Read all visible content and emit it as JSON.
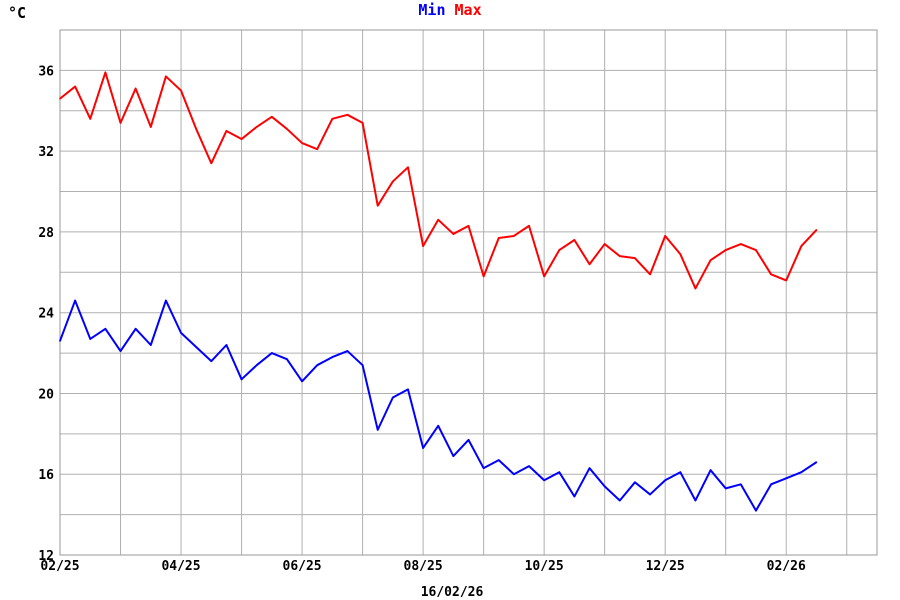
{
  "chart_data": {
    "type": "line",
    "title": "",
    "ylabel": "°C",
    "xlabel": "16/02/26",
    "ylim": [
      12,
      38
    ],
    "yticks": [
      12,
      16,
      20,
      24,
      28,
      32,
      36
    ],
    "xticks": [
      "02/25",
      "04/25",
      "06/25",
      "08/25",
      "10/25",
      "12/25",
      "02/26"
    ],
    "grid": true,
    "legend_position": "top-center",
    "x_unit": "month (MM/YY)",
    "x": [
      0,
      0.25,
      0.5,
      0.75,
      1,
      1.25,
      1.5,
      1.75,
      2,
      2.25,
      2.5,
      2.75,
      3,
      3.25,
      3.5,
      3.75,
      4,
      4.25,
      4.5,
      4.75,
      5,
      5.25,
      5.5,
      5.75,
      6,
      6.25,
      6.5,
      6.75,
      7,
      7.25,
      7.5,
      7.75,
      8,
      8.25,
      8.5,
      8.75,
      9,
      9.25,
      9.5,
      9.75,
      10,
      10.25,
      10.5,
      10.75,
      11,
      11.25,
      11.5,
      11.75,
      12,
      12.25,
      12.5
    ],
    "series": [
      {
        "name": "Min",
        "color": "#0000ff",
        "values": [
          22.6,
          24.6,
          22.7,
          23.2,
          22.1,
          23.2,
          22.4,
          24.6,
          23.0,
          22.3,
          21.6,
          22.4,
          20.7,
          21.4,
          22.0,
          21.7,
          20.6,
          21.4,
          21.8,
          22.1,
          21.4,
          18.2,
          19.8,
          20.2,
          17.3,
          18.4,
          16.9,
          17.7,
          16.3,
          16.7,
          16.0,
          16.4,
          15.7,
          16.1,
          14.9,
          16.3,
          15.4,
          14.7,
          15.6,
          15.0,
          15.7,
          16.1,
          14.7,
          16.2,
          15.3,
          15.5,
          14.2,
          15.5,
          15.8,
          16.1,
          16.6
        ]
      },
      {
        "name": "Max",
        "color": "#ff0000",
        "values": [
          34.6,
          35.2,
          33.6,
          35.9,
          33.4,
          35.1,
          33.2,
          35.7,
          35.0,
          33.1,
          31.4,
          33.0,
          32.6,
          33.2,
          33.7,
          33.1,
          32.4,
          32.1,
          33.6,
          33.8,
          33.4,
          29.3,
          30.5,
          31.2,
          27.3,
          28.6,
          27.9,
          28.3,
          25.8,
          27.7,
          27.8,
          28.3,
          25.8,
          27.1,
          27.6,
          26.4,
          27.4,
          26.8,
          26.7,
          25.9,
          27.8,
          26.9,
          25.2,
          26.6,
          27.1,
          27.4,
          27.1,
          25.9,
          25.6,
          27.3,
          28.1
        ]
      }
    ]
  }
}
